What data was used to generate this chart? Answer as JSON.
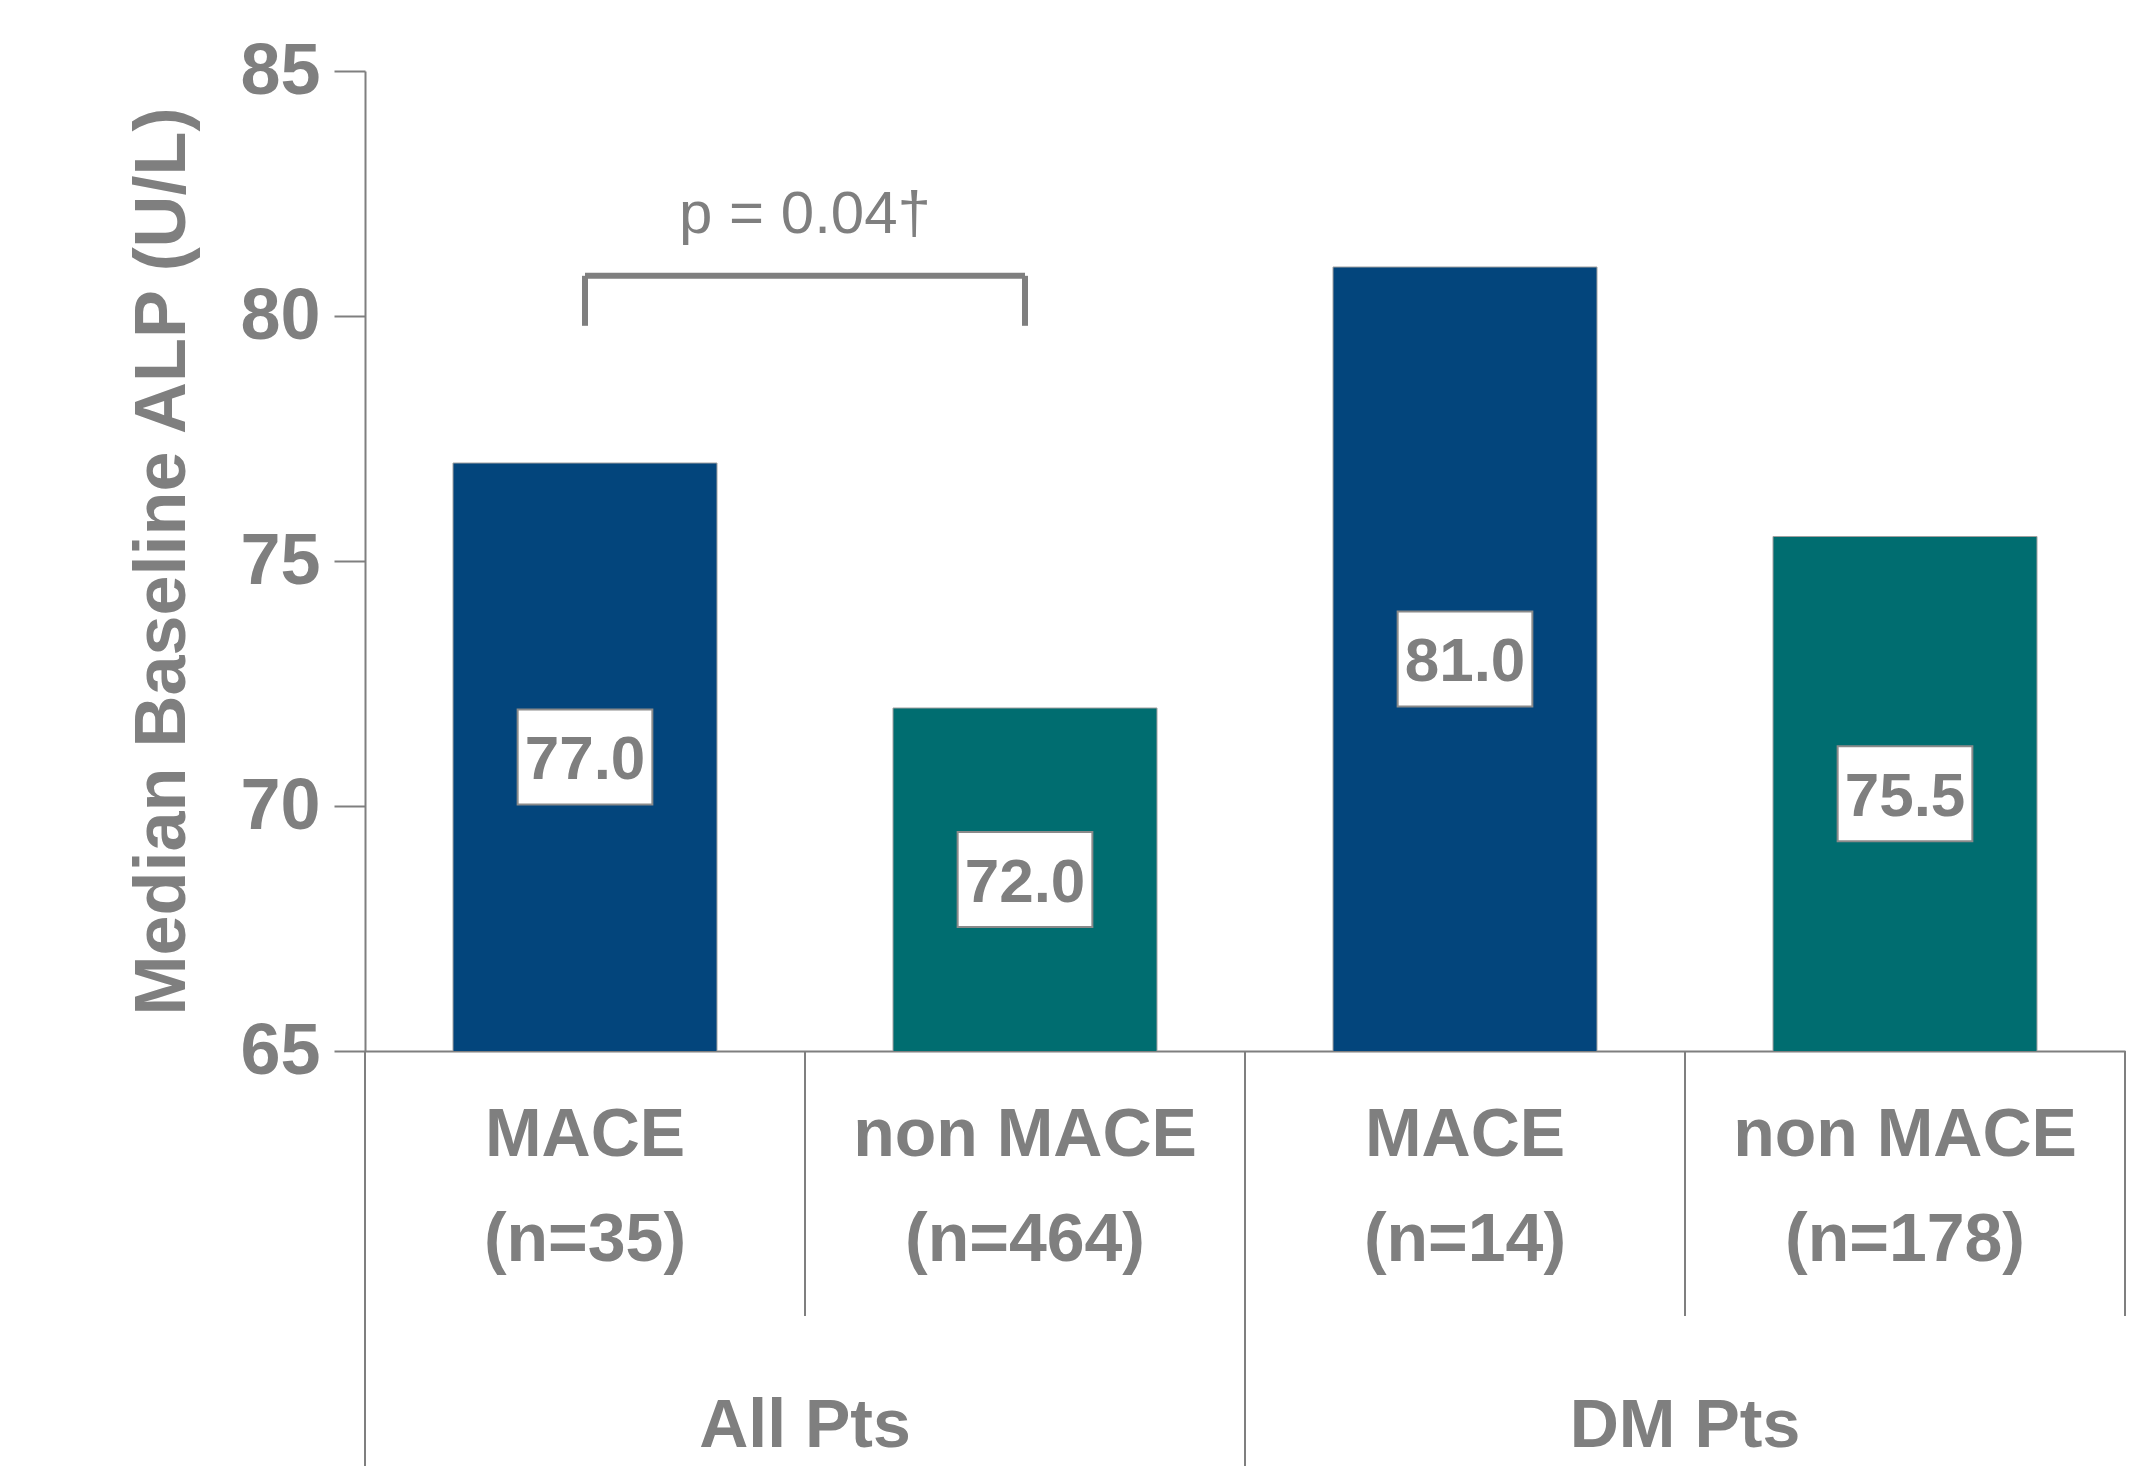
{
  "chart_data": {
    "type": "bar",
    "ylabel": "Median Baseline ALP (U/L)",
    "categories": [
      "MACE\n(n=35)",
      "non MACE\n(n=464)",
      "MACE\n(n=14)",
      "non MACE\n(n=178)"
    ],
    "values": [
      77.0,
      72.0,
      81.0,
      75.5
    ],
    "colors": [
      "#03457c",
      "#006d70",
      "#03457c",
      "#006d70"
    ],
    "value_labels": [
      "77.0",
      "72.0",
      "81.0",
      "75.5"
    ],
    "ylim": [
      65,
      85
    ],
    "yticks": [
      65,
      70,
      75,
      80,
      85
    ],
    "annotations": [
      "p = 0.04†",
      "All Pts",
      "DM Pts"
    ]
  }
}
